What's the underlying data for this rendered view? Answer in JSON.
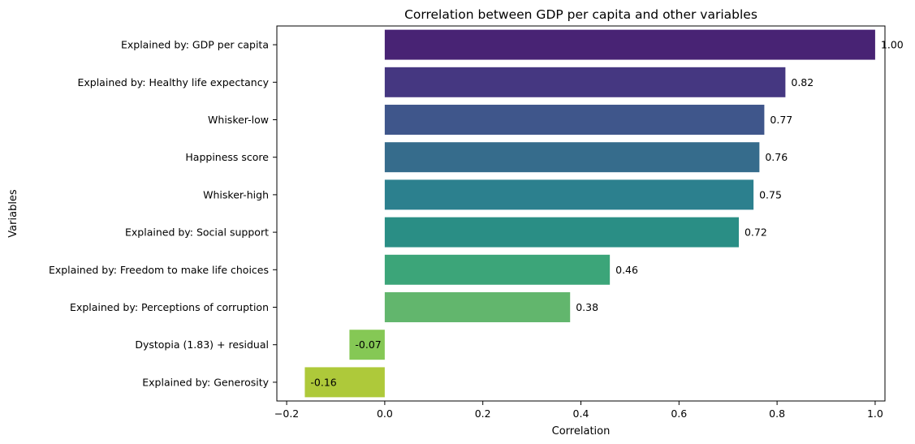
{
  "chart_data": {
    "type": "bar",
    "orientation": "horizontal",
    "title": "Correlation between GDP per capita and other variables",
    "xlabel": "Correlation",
    "ylabel": "Variables",
    "xlim": [
      -0.22,
      1.02
    ],
    "xticks": [
      -0.2,
      0.0,
      0.2,
      0.4,
      0.6,
      0.8,
      1.0
    ],
    "xtick_labels": [
      "−0.2",
      "0.0",
      "0.2",
      "0.4",
      "0.6",
      "0.8",
      "1.0"
    ],
    "grid": false,
    "categories": [
      "Explained by: GDP per capita",
      "Explained by: Healthy life expectancy",
      "Whisker-low",
      "Happiness score",
      "Whisker-high",
      "Explained by: Social support",
      "Explained by: Freedom to make life choices",
      "Explained by: Perceptions of corruption",
      "Dystopia (1.83) + residual",
      "Explained by: Generosity"
    ],
    "values": [
      1.0,
      0.817,
      0.774,
      0.764,
      0.752,
      0.722,
      0.459,
      0.378,
      -0.072,
      -0.163
    ],
    "value_labels": [
      "1.00",
      "0.82",
      "0.77",
      "0.76",
      "0.75",
      "0.72",
      "0.46",
      "0.38",
      "-0.07",
      "-0.16"
    ],
    "colors": [
      "#482374",
      "#453781",
      "#3f568b",
      "#366c8c",
      "#2c808e",
      "#2a8e85",
      "#3ca579",
      "#62b66d",
      "#85c855",
      "#aec93a"
    ]
  }
}
